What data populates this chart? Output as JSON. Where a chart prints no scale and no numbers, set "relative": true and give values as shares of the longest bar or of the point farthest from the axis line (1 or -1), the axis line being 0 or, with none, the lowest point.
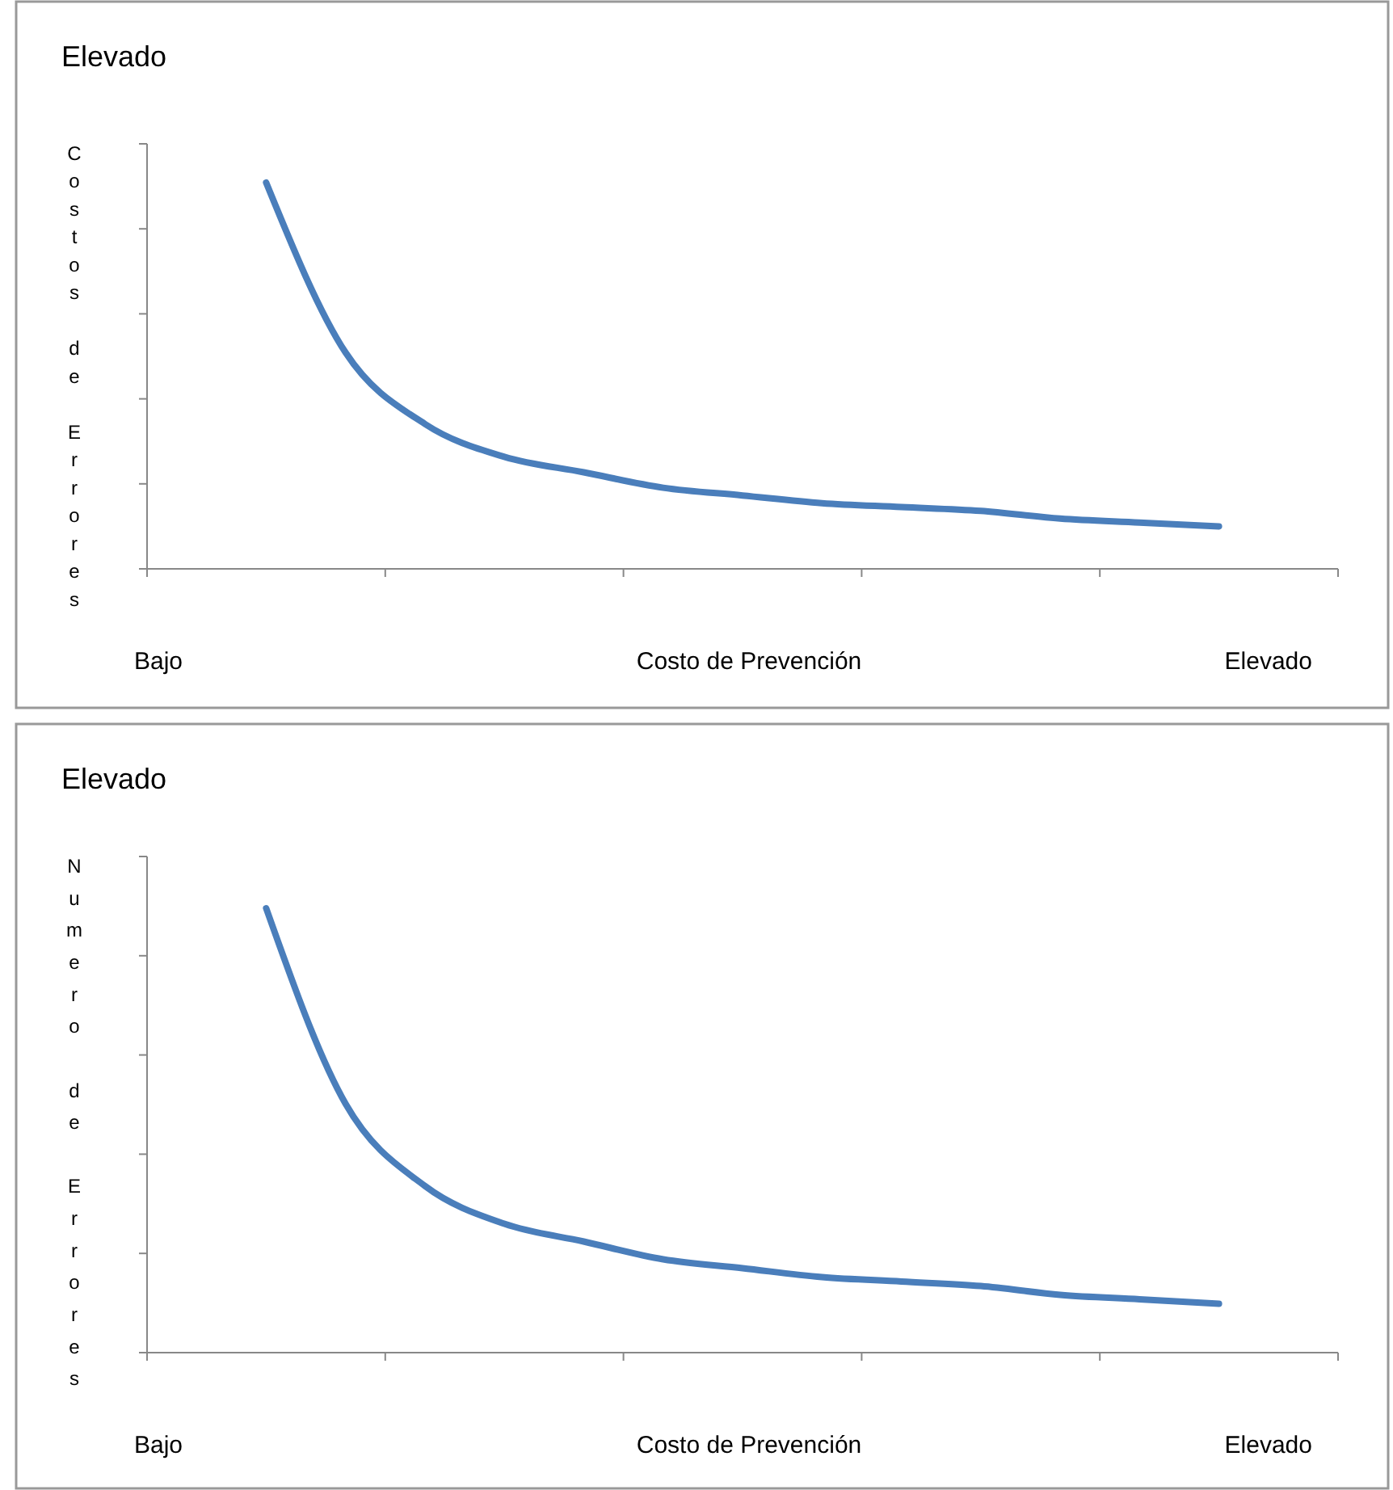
{
  "chart_data": [
    {
      "type": "line",
      "relative": true,
      "title": "Elevado",
      "ylabel": "Costos de Errores",
      "xlabel": "Costo de Prevención",
      "annotations": [
        "Bajo",
        "Elevado"
      ],
      "categories": [
        null,
        null,
        null,
        null,
        null,
        null,
        null,
        null,
        null,
        null,
        null,
        null,
        null
      ],
      "series": [
        {
          "color": "#4a7ebb",
          "values": [
            1,
            0.56,
            0.375,
            0.29,
            0.25,
            0.21,
            0.19,
            0.17,
            0.16,
            0.15,
            0.13,
            0.12,
            0.11
          ]
        }
      ],
      "line_style": "solid",
      "grid": false
    },
    {
      "type": "line",
      "relative": true,
      "title": "Elevado",
      "ylabel": "Numero de Errores",
      "xlabel": "Costo de Prevención",
      "annotations": [
        "Bajo",
        "Elevado"
      ],
      "categories": [
        null,
        null,
        null,
        null,
        null,
        null,
        null,
        null,
        null,
        null,
        null,
        null,
        null
      ],
      "series": [
        {
          "color": "#4a7ebb",
          "values": [
            1,
            0.56,
            0.375,
            0.29,
            0.25,
            0.21,
            0.19,
            0.17,
            0.16,
            0.15,
            0.13,
            0.12,
            0.11
          ]
        }
      ],
      "line_style": "solid",
      "grid": false
    }
  ]
}
